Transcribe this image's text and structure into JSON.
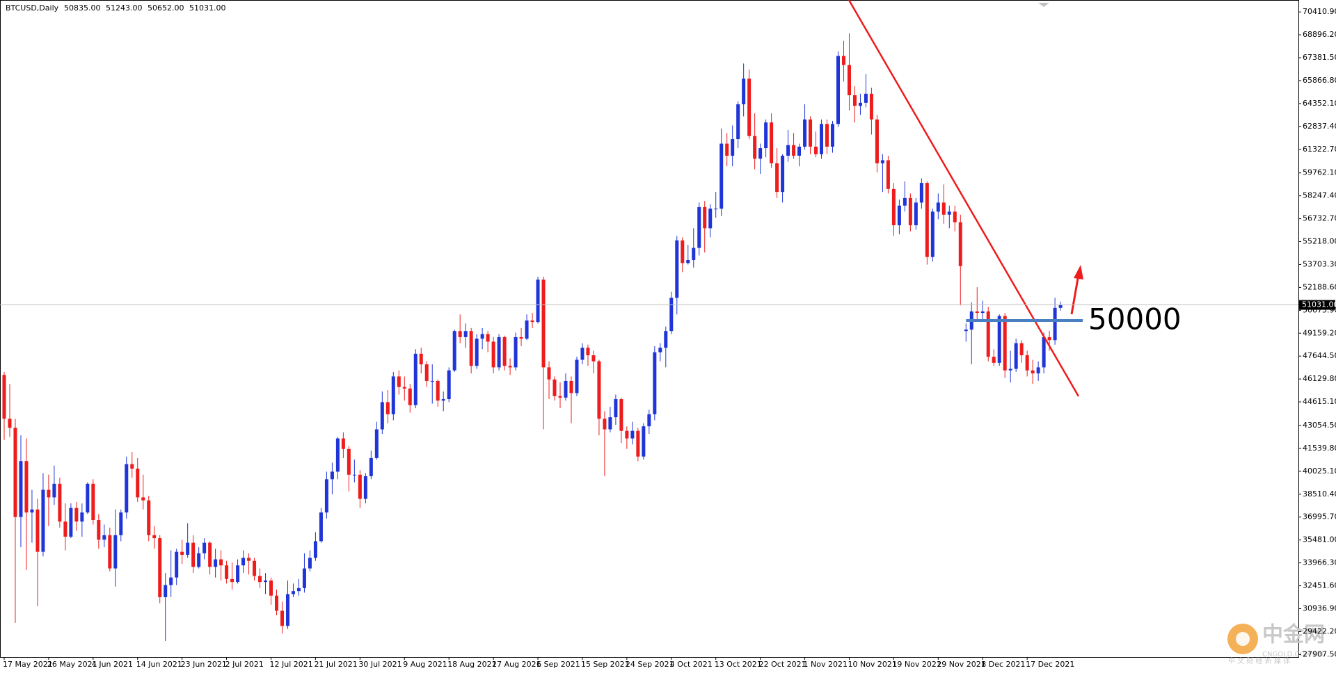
{
  "chart_data": {
    "type": "candlestick",
    "symbol": "BTCUSD,Daily",
    "quote": [
      {
        "value": 50835,
        "label": "50835.00"
      },
      {
        "value": 51243,
        "label": "51243.00"
      },
      {
        "value": 50652,
        "label": "50652.00"
      },
      {
        "value": 51031,
        "label": "51031.00"
      }
    ],
    "price": {
      "value": 51031,
      "label": "51031.00"
    },
    "level": 50000,
    "up_color": "#1f35d8",
    "down_color": "#ee1c1c",
    "level_color": "#4a7fc1",
    "grid": false,
    "ylim": [
      27740,
      71200
    ],
    "yticks": [
      {
        "value": 70410.9,
        "label": "70410.90"
      },
      {
        "value": 68896.2,
        "label": "68896.20"
      },
      {
        "value": 67381.5,
        "label": "67381.50"
      },
      {
        "value": 65866.8,
        "label": "65866.80"
      },
      {
        "value": 64352.1,
        "label": "64352.10"
      },
      {
        "value": 62837.4,
        "label": "62837.40"
      },
      {
        "value": 61322.7,
        "label": "61322.70"
      },
      {
        "value": 59762.1,
        "label": "59762.10"
      },
      {
        "value": 58247.4,
        "label": "58247.40"
      },
      {
        "value": 56732.7,
        "label": "56732.70"
      },
      {
        "value": 55218,
        "label": "55218.00"
      },
      {
        "value": 53703.3,
        "label": "53703.30"
      },
      {
        "value": 52188.6,
        "label": "52188.60"
      },
      {
        "value": 50673.9,
        "label": "50673.90"
      },
      {
        "value": 49159.2,
        "label": "49159.20"
      },
      {
        "value": 47644.5,
        "label": "47644.50"
      },
      {
        "value": 46129.8,
        "label": "46129.80"
      },
      {
        "value": 44615.1,
        "label": "44615.10"
      },
      {
        "value": 43054.5,
        "label": "43054.50"
      },
      {
        "value": 41539.8,
        "label": "41539.80"
      },
      {
        "value": 40025.1,
        "label": "40025.10"
      },
      {
        "value": 38510.4,
        "label": "38510.40"
      },
      {
        "value": 36995.7,
        "label": "36995.70"
      },
      {
        "value": 35481,
        "label": "35481.00"
      },
      {
        "value": 33966.3,
        "label": "33966.30"
      },
      {
        "value": 32451.6,
        "label": "32451.60"
      },
      {
        "value": 30936.9,
        "label": "30936.90"
      },
      {
        "value": 29422.2,
        "label": "29422.20"
      },
      {
        "value": 27907.5,
        "label": "27907.50"
      }
    ],
    "categories": [
      "17 May 2021",
      null,
      null,
      null,
      null,
      null,
      null,
      null,
      "26 May 2021",
      null,
      null,
      null,
      null,
      null,
      null,
      null,
      "4 Jun 2021",
      null,
      null,
      null,
      null,
      null,
      null,
      null,
      "14 Jun 2021",
      null,
      null,
      null,
      null,
      null,
      null,
      null,
      "23 Jun 2021",
      null,
      null,
      null,
      null,
      null,
      null,
      null,
      "2 Jul 2021",
      null,
      null,
      null,
      null,
      null,
      null,
      null,
      "12 Jul 2021",
      null,
      null,
      null,
      null,
      null,
      null,
      null,
      "21 Jul 2021",
      null,
      null,
      null,
      null,
      null,
      null,
      null,
      "30 Jul 2021",
      null,
      null,
      null,
      null,
      null,
      null,
      null,
      "9 Aug 2021",
      null,
      null,
      null,
      null,
      null,
      null,
      null,
      "18 Aug 2021",
      null,
      null,
      null,
      null,
      null,
      null,
      null,
      "27 Aug 2021",
      null,
      null,
      null,
      null,
      null,
      null,
      null,
      "6 Sep 2021",
      null,
      null,
      null,
      null,
      null,
      null,
      null,
      "15 Sep 2021",
      null,
      null,
      null,
      null,
      null,
      null,
      null,
      "24 Sep 2021",
      null,
      null,
      null,
      null,
      null,
      null,
      null,
      "4 Oct 2021",
      null,
      null,
      null,
      null,
      null,
      null,
      null,
      "13 Oct 2021",
      null,
      null,
      null,
      null,
      null,
      null,
      null,
      "22 Oct 2021",
      null,
      null,
      null,
      null,
      null,
      null,
      null,
      "1 Nov 2021",
      null,
      null,
      null,
      null,
      null,
      null,
      null,
      "10 Nov 2021",
      null,
      null,
      null,
      null,
      null,
      null,
      null,
      "19 Nov 2021",
      null,
      null,
      null,
      null,
      null,
      null,
      null,
      "29 Nov 2021",
      null,
      null,
      null,
      null,
      null,
      null,
      null,
      "8 Dec 2021",
      null,
      null,
      null,
      null,
      null,
      null,
      null,
      "17 Dec 2021",
      null,
      null,
      null,
      null,
      null,
      null
    ],
    "candles": [
      [
        46400,
        46600,
        42100,
        43500
      ],
      [
        43500,
        45800,
        42300,
        42900
      ],
      [
        42900,
        43500,
        30000,
        37000
      ],
      [
        37000,
        42400,
        35000,
        40700
      ],
      [
        40700,
        42200,
        33500,
        37300
      ],
      [
        37300,
        38800,
        35300,
        37500
      ],
      [
        37500,
        38200,
        31100,
        34700
      ],
      [
        34700,
        39900,
        34400,
        38800
      ],
      [
        38800,
        39800,
        36400,
        38300
      ],
      [
        38300,
        40400,
        37800,
        39200
      ],
      [
        39200,
        39600,
        36300,
        36700
      ],
      [
        36700,
        37900,
        34800,
        35700
      ],
      [
        35700,
        37900,
        35600,
        37600
      ],
      [
        37600,
        38000,
        36100,
        36700
      ],
      [
        36700,
        37900,
        35700,
        37300
      ],
      [
        37300,
        39300,
        37200,
        39200
      ],
      [
        39200,
        39500,
        36500,
        36800
      ],
      [
        36800,
        37200,
        34900,
        35500
      ],
      [
        35500,
        36500,
        35000,
        35800
      ],
      [
        35800,
        36300,
        33400,
        33600
      ],
      [
        33600,
        37500,
        32400,
        35800
      ],
      [
        35800,
        37500,
        35400,
        37300
      ],
      [
        37300,
        41000,
        36900,
        40500
      ],
      [
        40500,
        41300,
        39600,
        40200
      ],
      [
        40200,
        40900,
        38000,
        38300
      ],
      [
        38300,
        39800,
        37500,
        38100
      ],
      [
        38100,
        38400,
        35400,
        35800
      ],
      [
        35800,
        36400,
        34900,
        35600
      ],
      [
        35600,
        35800,
        31300,
        31700
      ],
      [
        31700,
        33300,
        28800,
        32500
      ],
      [
        32500,
        34800,
        31700,
        33000
      ],
      [
        33000,
        34900,
        32500,
        34700
      ],
      [
        34700,
        35500,
        33900,
        34500
      ],
      [
        34500,
        36600,
        34300,
        35300
      ],
      [
        35300,
        35800,
        33300,
        33700
      ],
      [
        33700,
        35000,
        33600,
        34600
      ],
      [
        34600,
        35600,
        34200,
        35300
      ],
      [
        35300,
        35400,
        33200,
        33700
      ],
      [
        33700,
        34900,
        33000,
        34200
      ],
      [
        34200,
        34800,
        32800,
        33800
      ],
      [
        33800,
        34100,
        32600,
        32900
      ],
      [
        32900,
        34000,
        32200,
        32700
      ],
      [
        32700,
        34200,
        32600,
        33800
      ],
      [
        33800,
        34800,
        33300,
        34300
      ],
      [
        34300,
        34600,
        33200,
        34100
      ],
      [
        34100,
        34300,
        32800,
        33100
      ],
      [
        33100,
        33600,
        32300,
        32700
      ],
      [
        32700,
        33300,
        31900,
        32800
      ],
      [
        32800,
        33000,
        31200,
        31800
      ],
      [
        31800,
        32200,
        30500,
        30800
      ],
      [
        30800,
        31400,
        29300,
        29800
      ],
      [
        29800,
        32800,
        29600,
        31900
      ],
      [
        31900,
        32600,
        31700,
        32100
      ],
      [
        32100,
        32900,
        31800,
        32300
      ],
      [
        32300,
        34600,
        32000,
        33600
      ],
      [
        33600,
        34800,
        33400,
        34300
      ],
      [
        34300,
        36000,
        34100,
        35400
      ],
      [
        35400,
        37600,
        35300,
        37300
      ],
      [
        37300,
        40000,
        36900,
        39500
      ],
      [
        39500,
        40600,
        38500,
        40000
      ],
      [
        40000,
        42300,
        39500,
        42200
      ],
      [
        42200,
        42600,
        40900,
        41500
      ],
      [
        41500,
        41700,
        38700,
        39800
      ],
      [
        39800,
        40800,
        39300,
        39800
      ],
      [
        39800,
        40100,
        37600,
        38200
      ],
      [
        38200,
        39900,
        37900,
        39700
      ],
      [
        39700,
        41400,
        39500,
        40900
      ],
      [
        40900,
        43300,
        40800,
        42800
      ],
      [
        42800,
        45300,
        42500,
        44600
      ],
      [
        44600,
        45400,
        43200,
        43800
      ],
      [
        43800,
        46600,
        43400,
        46300
      ],
      [
        46300,
        46700,
        45100,
        45600
      ],
      [
        45600,
        46300,
        44700,
        45500
      ],
      [
        45500,
        45800,
        43900,
        44400
      ],
      [
        44400,
        48100,
        44200,
        47800
      ],
      [
        47800,
        48200,
        46500,
        47100
      ],
      [
        47100,
        47300,
        45600,
        46000
      ],
      [
        46000,
        47100,
        44500,
        46000
      ],
      [
        46000,
        46100,
        44300,
        44700
      ],
      [
        44700,
        45300,
        44000,
        44800
      ],
      [
        44800,
        46900,
        44600,
        46700
      ],
      [
        46700,
        49400,
        46600,
        49300
      ],
      [
        49300,
        50400,
        48500,
        48900
      ],
      [
        48900,
        49800,
        48200,
        49300
      ],
      [
        49300,
        49500,
        46500,
        47000
      ],
      [
        47000,
        49100,
        46800,
        48800
      ],
      [
        48800,
        49500,
        48100,
        49100
      ],
      [
        49100,
        49300,
        47900,
        48600
      ],
      [
        48600,
        48900,
        46500,
        46900
      ],
      [
        46900,
        49100,
        46700,
        48900
      ],
      [
        48900,
        49000,
        46700,
        47000
      ],
      [
        47000,
        47500,
        46400,
        46900
      ],
      [
        46900,
        49200,
        46700,
        48900
      ],
      [
        48900,
        49500,
        48300,
        48800
      ],
      [
        48800,
        50400,
        48700,
        50000
      ],
      [
        50000,
        50500,
        49500,
        49900
      ],
      [
        49900,
        52900,
        49800,
        52700
      ],
      [
        52700,
        52900,
        42800,
        46900
      ],
      [
        46900,
        47300,
        44800,
        46100
      ],
      [
        46100,
        46300,
        44700,
        45000
      ],
      [
        45000,
        45900,
        44200,
        44900
      ],
      [
        44900,
        46500,
        44700,
        46000
      ],
      [
        46000,
        46300,
        43200,
        45200
      ],
      [
        45200,
        47600,
        45000,
        47400
      ],
      [
        47400,
        48500,
        47100,
        48200
      ],
      [
        48200,
        48400,
        47000,
        47700
      ],
      [
        47700,
        48000,
        46500,
        47300
      ],
      [
        47300,
        47400,
        42400,
        43500
      ],
      [
        43500,
        44000,
        39700,
        42800
      ],
      [
        42800,
        44300,
        42600,
        43600
      ],
      [
        43600,
        45100,
        43100,
        44800
      ],
      [
        44800,
        44900,
        41900,
        42700
      ],
      [
        42700,
        43000,
        41500,
        42200
      ],
      [
        42200,
        43300,
        41800,
        42700
      ],
      [
        42700,
        42900,
        40700,
        41000
      ],
      [
        41000,
        43200,
        40800,
        43000
      ],
      [
        43000,
        44100,
        42500,
        43800
      ],
      [
        43800,
        48300,
        43400,
        47900
      ],
      [
        47900,
        48500,
        47300,
        48200
      ],
      [
        48200,
        49600,
        46900,
        49300
      ],
      [
        49300,
        51900,
        49100,
        51500
      ],
      [
        51500,
        55600,
        50400,
        55300
      ],
      [
        55300,
        55500,
        53200,
        53800
      ],
      [
        53800,
        55000,
        53700,
        54000
      ],
      [
        54000,
        56100,
        53500,
        54800
      ],
      [
        54800,
        57800,
        54300,
        57500
      ],
      [
        57500,
        57900,
        54500,
        56100
      ],
      [
        56100,
        57700,
        55500,
        57400
      ],
      [
        57400,
        58500,
        56800,
        57400
      ],
      [
        57400,
        62700,
        56900,
        61700
      ],
      [
        61700,
        62400,
        60200,
        60900
      ],
      [
        60900,
        62900,
        60200,
        62000
      ],
      [
        62000,
        64500,
        61400,
        64300
      ],
      [
        64300,
        67000,
        63500,
        66000
      ],
      [
        66000,
        66600,
        62000,
        62200
      ],
      [
        62200,
        63700,
        60000,
        60700
      ],
      [
        60700,
        61700,
        59700,
        61400
      ],
      [
        61400,
        63300,
        60800,
        63100
      ],
      [
        63100,
        63700,
        60100,
        60400
      ],
      [
        60400,
        61400,
        58100,
        58500
      ],
      [
        58500,
        61000,
        57800,
        60900
      ],
      [
        60900,
        62600,
        60500,
        61600
      ],
      [
        61600,
        62400,
        60700,
        60900
      ],
      [
        60900,
        61700,
        60200,
        61500
      ],
      [
        61500,
        64300,
        61300,
        63300
      ],
      [
        63300,
        63500,
        61000,
        61500
      ],
      [
        61500,
        62500,
        60800,
        61000
      ],
      [
        61000,
        63300,
        60700,
        63000
      ],
      [
        63000,
        63300,
        61000,
        61500
      ],
      [
        61500,
        63200,
        61100,
        63000
      ],
      [
        63000,
        67800,
        62800,
        67500
      ],
      [
        67500,
        68500,
        65800,
        66900
      ],
      [
        66900,
        69000,
        63900,
        64900
      ],
      [
        64900,
        65500,
        63100,
        64200
      ],
      [
        64200,
        65000,
        63600,
        64400
      ],
      [
        64400,
        66300,
        64100,
        65000
      ],
      [
        65000,
        65400,
        62300,
        63300
      ],
      [
        63300,
        63600,
        59800,
        60400
      ],
      [
        60400,
        61000,
        58500,
        60600
      ],
      [
        60600,
        60900,
        58400,
        58700
      ],
      [
        58700,
        59100,
        55600,
        56300
      ],
      [
        56300,
        58000,
        55700,
        57600
      ],
      [
        57600,
        59200,
        57200,
        58100
      ],
      [
        58100,
        58400,
        55900,
        56300
      ],
      [
        56300,
        58100,
        56000,
        57800
      ],
      [
        57800,
        59400,
        57400,
        59100
      ],
      [
        59100,
        59200,
        53700,
        54200
      ],
      [
        54200,
        57400,
        53900,
        57200
      ],
      [
        57200,
        58400,
        56700,
        57800
      ],
      [
        57800,
        59000,
        56400,
        57000
      ],
      [
        57000,
        57600,
        56100,
        57200
      ],
      [
        57200,
        57600,
        55900,
        56500
      ],
      [
        56500,
        57000,
        51000,
        53600
      ],
      [
        49300,
        49800,
        48600,
        49400
      ],
      [
        49400,
        51200,
        47100,
        50600
      ],
      [
        50600,
        52200,
        50100,
        50500
      ],
      [
        50500,
        51300,
        50000,
        50600
      ],
      [
        50600,
        50900,
        47300,
        47600
      ],
      [
        47600,
        48100,
        47000,
        47200
      ],
      [
        47200,
        50400,
        47000,
        50300
      ],
      [
        50300,
        50500,
        46200,
        46700
      ],
      [
        46700,
        48000,
        45900,
        46800
      ],
      [
        46800,
        48800,
        46600,
        48500
      ],
      [
        48500,
        48700,
        47200,
        47700
      ],
      [
        47700,
        48000,
        46300,
        46700
      ],
      [
        46700,
        47400,
        45800,
        46500
      ],
      [
        46500,
        47300,
        46000,
        46900
      ],
      [
        46900,
        49200,
        46500,
        48900
      ],
      [
        48900,
        49300,
        48000,
        48700
      ],
      [
        48700,
        51500,
        48400,
        50835
      ],
      [
        50835,
        51243,
        50652,
        51031
      ]
    ],
    "watermark": {
      "name": "中金网",
      "domain": "CNGOLD.COM.CN",
      "tagline": "中 文 财 经 新 媒 体"
    }
  }
}
